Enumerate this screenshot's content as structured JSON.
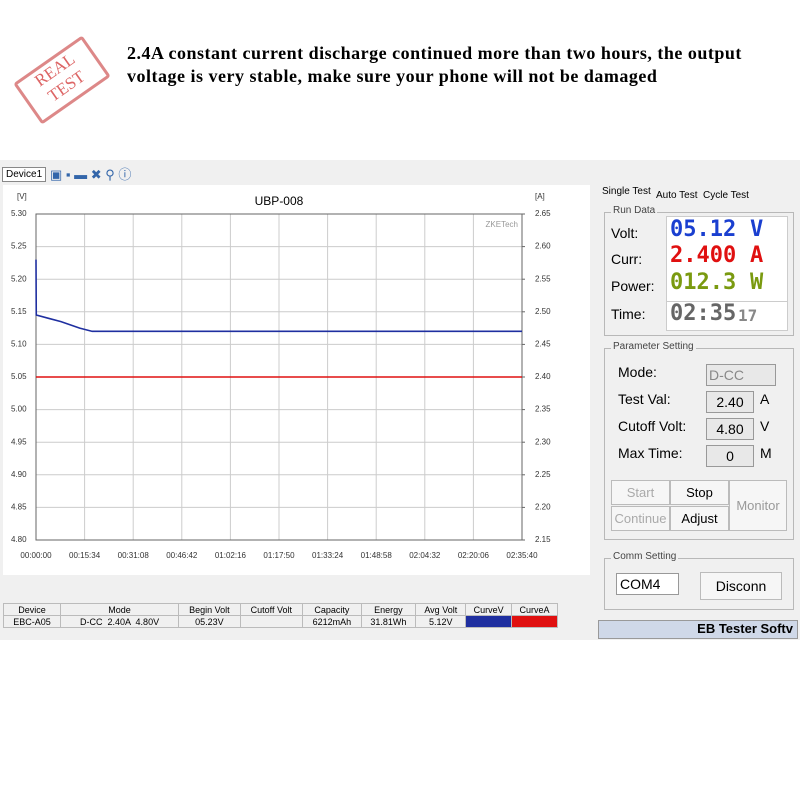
{
  "header": {
    "stamp": "REAL TEST",
    "text": "2.4A constant current discharge continued more than two hours, the output voltage is very stable, make sure your phone will not be damaged"
  },
  "toolbar": {
    "device": "Device1"
  },
  "chart_data": {
    "type": "line",
    "title": "UBP-008",
    "y_label": "[V]",
    "y2_label": "[A]",
    "watermark": "ZKETech",
    "grid": true,
    "xlim": [
      "00:00:00",
      "02:35:40"
    ],
    "xticks": [
      "00:00:00",
      "00:15:34",
      "00:31:08",
      "00:46:42",
      "01:02:16",
      "01:17:50",
      "01:33:24",
      "01:48:58",
      "02:04:32",
      "02:20:06",
      "02:35:40"
    ],
    "ylim": [
      4.8,
      5.3
    ],
    "yticks": [
      {
        "value": 4.8,
        "label": "4.80"
      },
      4.85,
      {
        "value": 4.9,
        "label": "4.90"
      },
      4.95,
      {
        "value": 5.0,
        "label": "5.00"
      },
      5.05,
      {
        "value": 5.1,
        "label": "5.10"
      },
      5.15,
      {
        "value": 5.2,
        "label": "5.20"
      },
      5.25,
      {
        "value": 5.3,
        "label": "5.30"
      }
    ],
    "y2lim": [
      2.15,
      2.65
    ],
    "y2ticks": [
      2.15,
      {
        "value": 2.2,
        "label": "2.20"
      },
      2.25,
      {
        "value": 2.3,
        "label": "2.30"
      },
      2.35,
      {
        "value": 2.4,
        "label": "2.40"
      },
      2.45,
      {
        "value": 2.5,
        "label": "2.50"
      },
      2.55,
      {
        "value": 2.6,
        "label": "2.60"
      },
      2.65
    ],
    "series": [
      {
        "color": "#1f2fa0",
        "x": [
          "00:00:00",
          "00:00:05",
          "00:04:00",
          "00:08:00",
          "00:11:00",
          "00:14:00",
          "00:18:00",
          "02:35:40"
        ],
        "values": [
          5.23,
          5.145,
          5.14,
          5.135,
          5.13,
          5.125,
          5.12,
          5.12
        ]
      },
      {
        "color": "#e01010",
        "axis": "y2",
        "x": [
          "00:00:00",
          "02:35:40"
        ],
        "values": [
          2.4,
          2.4
        ]
      }
    ]
  },
  "panel": {
    "tabs": [
      "Single Test",
      "Auto Test",
      "Cycle Test"
    ],
    "run_data": {
      "title": "Run Data",
      "rows": [
        {
          "label": "Volt:",
          "value": "05.12",
          "unit": "V"
        },
        {
          "label": "Curr:",
          "value": "2.400",
          "unit": "A"
        },
        {
          "label": "Power:",
          "value": "012.3",
          "unit": "W"
        }
      ],
      "time_label": "Time:",
      "time": "02:35",
      "seconds": "17"
    },
    "parameter": {
      "title": "Parameter Setting",
      "mode_label": "Mode:",
      "mode": "D-CC",
      "test_label": "Test Val:",
      "test_val": "2.40",
      "test_unit": "A",
      "cutoff_label": "Cutoff Volt:",
      "cutoff_val": "4.80",
      "cutoff_unit": "V",
      "max_label": "Max Time:",
      "max_val": "0",
      "max_unit": "M"
    },
    "buttons": {
      "start": "Start",
      "stop": "Stop",
      "monitor": "Monitor",
      "continue": "Continue",
      "adjust": "Adjust"
    },
    "comm": {
      "title": "Comm Setting",
      "port": "COM4",
      "disconn": "Disconn"
    },
    "status": "EB Tester Softv"
  },
  "table": {
    "columns": [
      "Device",
      "Mode",
      "Begin Volt",
      "Cutoff Volt",
      "Capacity",
      "Energy",
      "Avg Volt",
      "CurveV",
      "CurveA"
    ],
    "row": {
      "device": "EBC-A05",
      "mode": "D-CC  2.40A  4.80V",
      "begin_volt": "05.23V",
      "capacity": "6212mAh",
      "energy": "31.81Wh",
      "avg_volt": "5.12V"
    }
  }
}
